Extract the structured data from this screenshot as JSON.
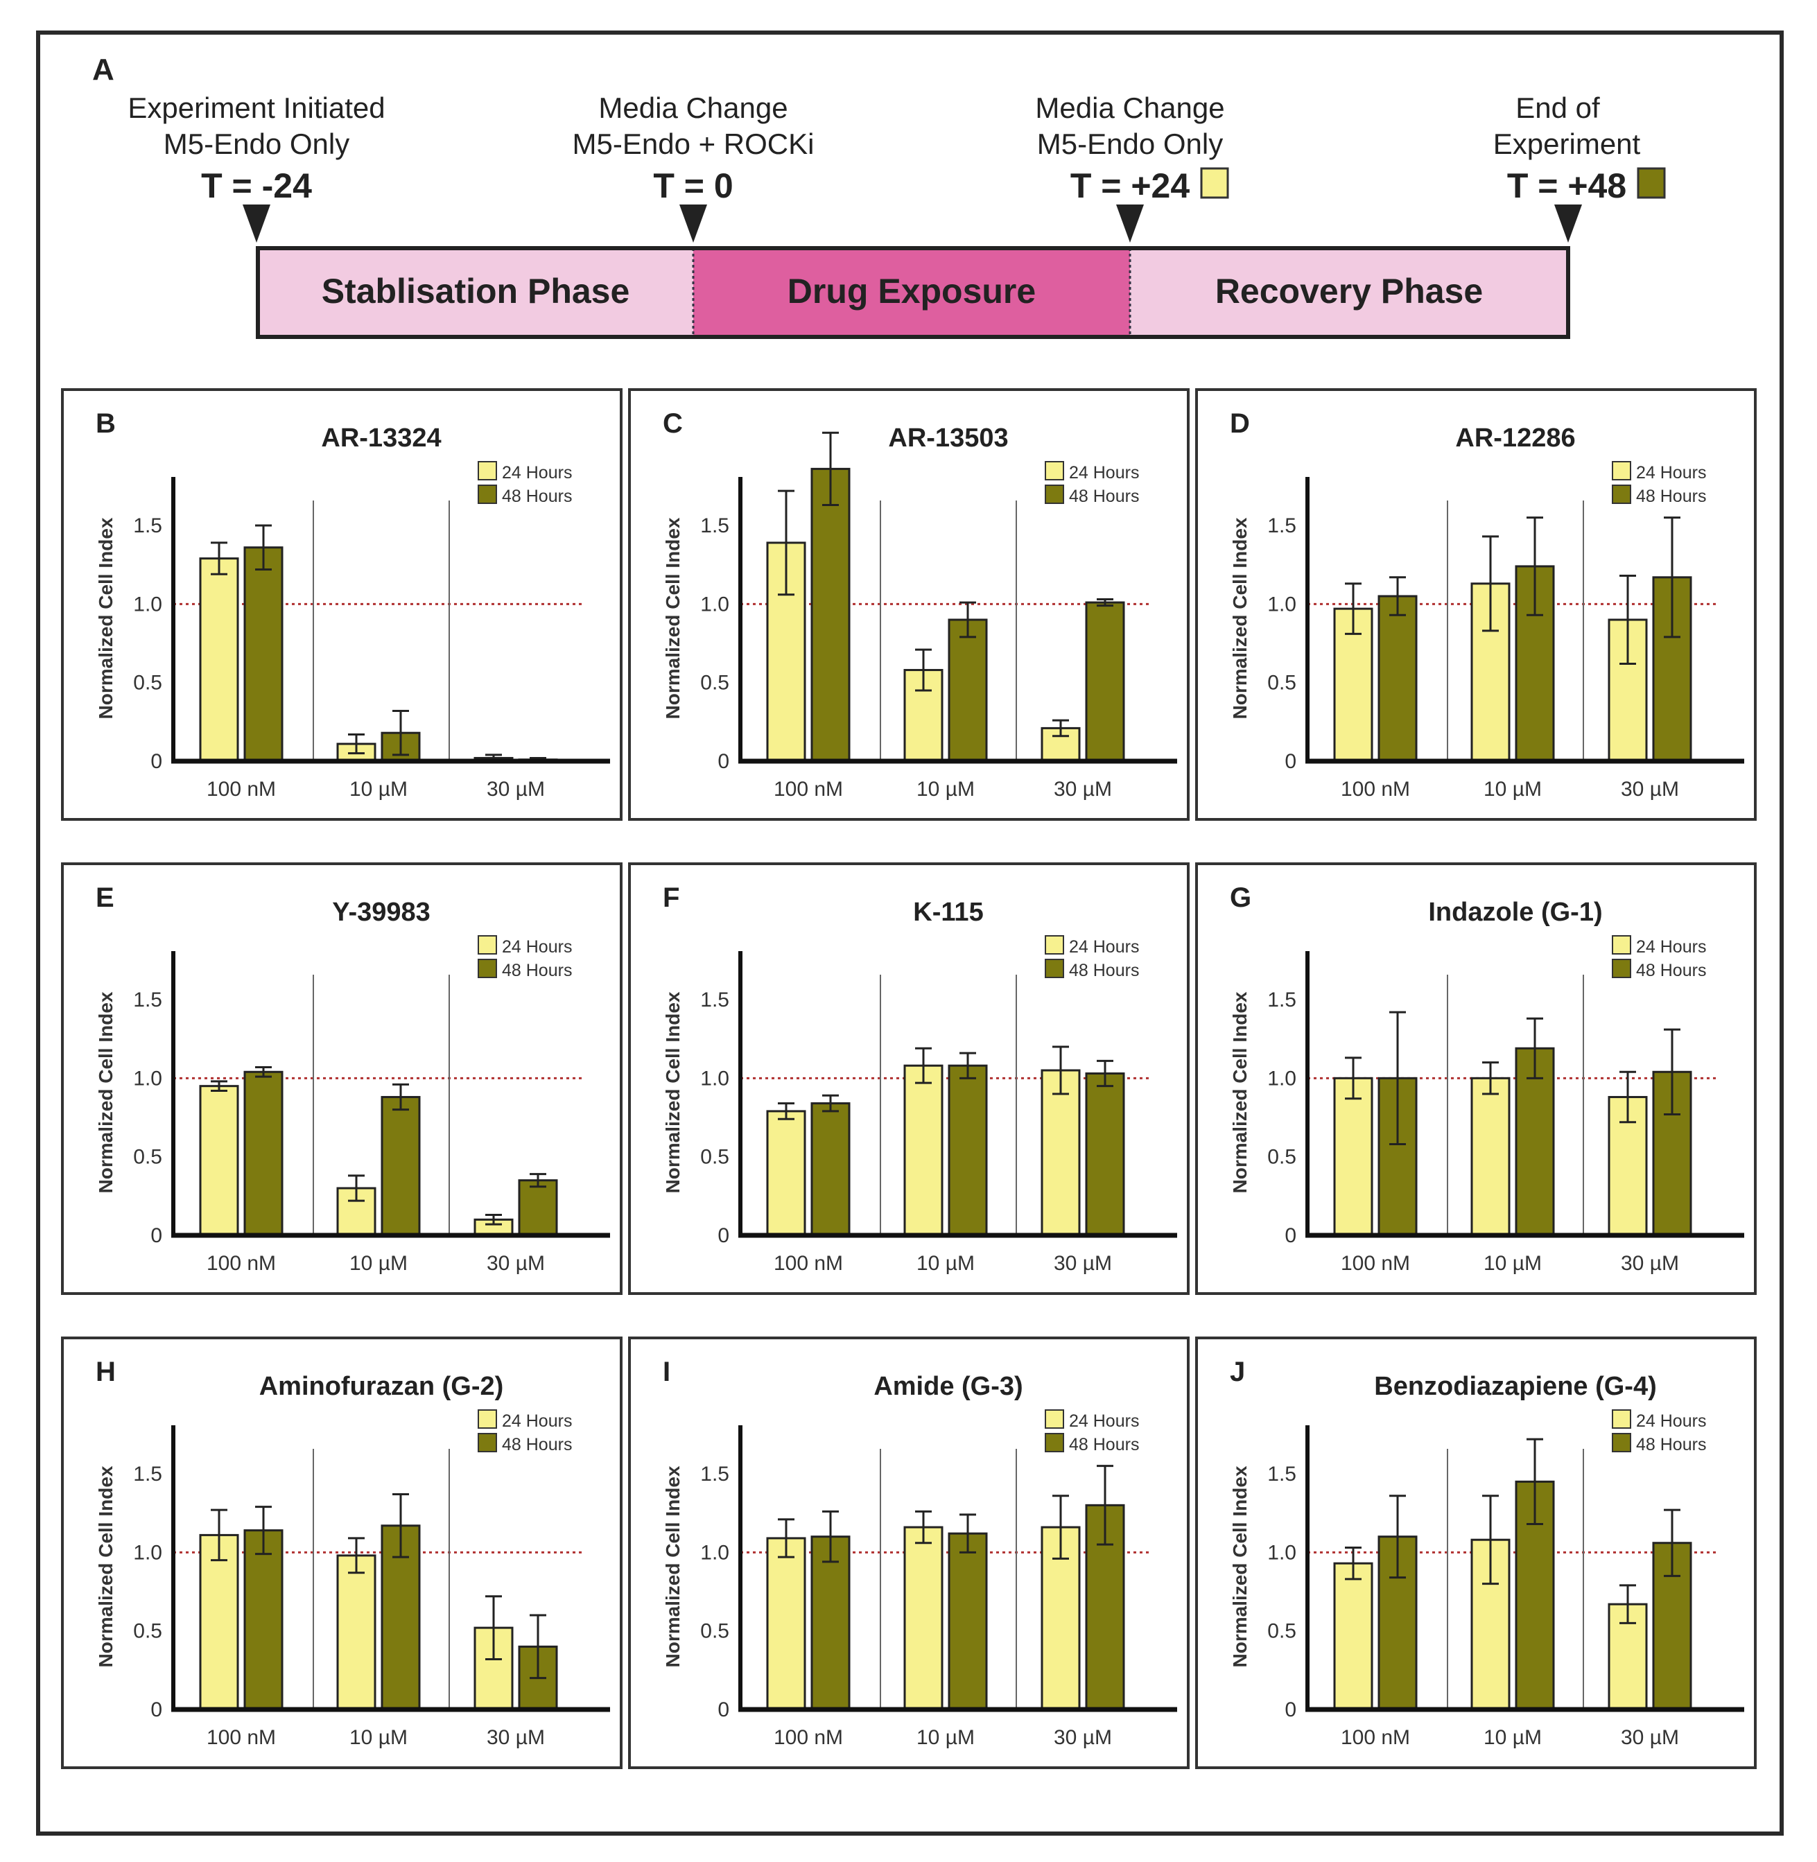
{
  "figure": {
    "panel_letter": "A",
    "events": [
      {
        "line1": "Experiment Initiated",
        "line2": "M5-Endo Only",
        "time": "T = -24",
        "marker": ""
      },
      {
        "line1": "Media Change",
        "line2": "M5-Endo + ROCKi",
        "time": "T = 0",
        "marker": ""
      },
      {
        "line1": "Media Change",
        "line2": "M5-Endo Only",
        "time": "T = +24",
        "marker": "#f7f18f"
      },
      {
        "line1": "End of",
        "line2": "Experiment",
        "time": "T = +48",
        "marker": "#7d7a10"
      }
    ],
    "phases": [
      {
        "label": "Stablisation Phase",
        "color": "#f2cbe1"
      },
      {
        "label": "Drug Exposure",
        "color": "#de5f9f"
      },
      {
        "label": "Recovery Phase",
        "color": "#f2cbe1"
      }
    ]
  },
  "colors": {
    "c24": "#f7f18f",
    "c48": "#7d7a10",
    "ref": "#b03030"
  },
  "chart_data": [
    {
      "type": "bar",
      "panel": "B",
      "title": "AR-13324",
      "ylabel": "Normalized Cell Index",
      "xlabel": "",
      "categories": [
        "100 nM",
        "10 µM",
        "30 µM"
      ],
      "yticks": [
        "0",
        "0.5",
        "1.0",
        "1.5"
      ],
      "ylim": [
        0,
        1.8
      ],
      "reference_line": 1.0,
      "legend": "top-right",
      "series": [
        {
          "name": "24 Hours",
          "values": [
            1.29,
            0.11,
            0.02
          ],
          "errors": [
            0.1,
            0.06,
            0.02
          ]
        },
        {
          "name": "48 Hours",
          "values": [
            1.36,
            0.18,
            0.01
          ],
          "errors": [
            0.14,
            0.14,
            0.01
          ]
        }
      ]
    },
    {
      "type": "bar",
      "panel": "C",
      "title": "AR-13503",
      "ylabel": "Normalized Cell Index",
      "xlabel": "",
      "categories": [
        "100 nM",
        "10 µM",
        "30 µM"
      ],
      "yticks": [
        "0",
        "0.5",
        "1.0",
        "1.5"
      ],
      "ylim": [
        0,
        1.8
      ],
      "reference_line": 1.0,
      "legend": "top-right",
      "series": [
        {
          "name": "24 Hours",
          "values": [
            1.39,
            0.58,
            0.21
          ],
          "errors": [
            0.33,
            0.13,
            0.05
          ]
        },
        {
          "name": "48 Hours",
          "values": [
            1.86,
            0.9,
            1.01
          ],
          "errors": [
            0.23,
            0.11,
            0.02
          ]
        }
      ]
    },
    {
      "type": "bar",
      "panel": "D",
      "title": "AR-12286",
      "ylabel": "Normalized Cell Index",
      "xlabel": "",
      "categories": [
        "100 nM",
        "10 µM",
        "30 µM"
      ],
      "yticks": [
        "0",
        "0.5",
        "1.0",
        "1.5"
      ],
      "ylim": [
        0,
        1.8
      ],
      "reference_line": 1.0,
      "legend": "top-right",
      "series": [
        {
          "name": "24 Hours",
          "values": [
            0.97,
            1.13,
            0.9
          ],
          "errors": [
            0.16,
            0.3,
            0.28
          ]
        },
        {
          "name": "48 Hours",
          "values": [
            1.05,
            1.24,
            1.17
          ],
          "errors": [
            0.12,
            0.31,
            0.38
          ]
        }
      ]
    },
    {
      "type": "bar",
      "panel": "E",
      "title": "Y-39983",
      "ylabel": "Normalized Cell Index",
      "xlabel": "",
      "categories": [
        "100 nM",
        "10 µM",
        "30 µM"
      ],
      "yticks": [
        "0",
        "0.5",
        "1.0",
        "1.5"
      ],
      "ylim": [
        0,
        1.8
      ],
      "reference_line": 1.0,
      "legend": "top-right",
      "series": [
        {
          "name": "24 Hours",
          "values": [
            0.95,
            0.3,
            0.1
          ],
          "errors": [
            0.03,
            0.08,
            0.03
          ]
        },
        {
          "name": "48 Hours",
          "values": [
            1.04,
            0.88,
            0.35
          ],
          "errors": [
            0.03,
            0.08,
            0.04
          ]
        }
      ]
    },
    {
      "type": "bar",
      "panel": "F",
      "title": "K-115",
      "ylabel": "Normalized Cell Index",
      "xlabel": "",
      "categories": [
        "100 nM",
        "10 µM",
        "30 µM"
      ],
      "yticks": [
        "0",
        "0.5",
        "1.0",
        "1.5"
      ],
      "ylim": [
        0,
        1.8
      ],
      "reference_line": 1.0,
      "legend": "top-right",
      "series": [
        {
          "name": "24 Hours",
          "values": [
            0.79,
            1.08,
            1.05
          ],
          "errors": [
            0.05,
            0.11,
            0.15
          ]
        },
        {
          "name": "48 Hours",
          "values": [
            0.84,
            1.08,
            1.03
          ],
          "errors": [
            0.05,
            0.08,
            0.08
          ]
        }
      ]
    },
    {
      "type": "bar",
      "panel": "G",
      "title": "Indazole (G-1)",
      "ylabel": "Normalized Cell Index",
      "xlabel": "",
      "categories": [
        "100 nM",
        "10 µM",
        "30 µM"
      ],
      "yticks": [
        "0",
        "0.5",
        "1.0",
        "1.5"
      ],
      "ylim": [
        0,
        1.8
      ],
      "reference_line": 1.0,
      "legend": "top-right",
      "series": [
        {
          "name": "24 Hours",
          "values": [
            1.0,
            1.0,
            0.88
          ],
          "errors": [
            0.13,
            0.1,
            0.16
          ]
        },
        {
          "name": "48 Hours",
          "values": [
            1.0,
            1.19,
            1.04
          ],
          "errors": [
            0.42,
            0.19,
            0.27
          ]
        }
      ]
    },
    {
      "type": "bar",
      "panel": "H",
      "title": "Aminofurazan (G-2)",
      "ylabel": "Normalized Cell Index",
      "xlabel": "",
      "categories": [
        "100 nM",
        "10 µM",
        "30 µM"
      ],
      "yticks": [
        "0",
        "0.5",
        "1.0",
        "1.5"
      ],
      "ylim": [
        0,
        1.8
      ],
      "reference_line": 1.0,
      "legend": "top-right",
      "series": [
        {
          "name": "24 Hours",
          "values": [
            1.11,
            0.98,
            0.52
          ],
          "errors": [
            0.16,
            0.11,
            0.2
          ]
        },
        {
          "name": "48 Hours",
          "values": [
            1.14,
            1.17,
            0.4
          ],
          "errors": [
            0.15,
            0.2,
            0.2
          ]
        }
      ]
    },
    {
      "type": "bar",
      "panel": "I",
      "title": "Amide (G-3)",
      "ylabel": "Normalized Cell Index",
      "xlabel": "",
      "categories": [
        "100 nM",
        "10 µM",
        "30 µM"
      ],
      "yticks": [
        "0",
        "0.5",
        "1.0",
        "1.5"
      ],
      "ylim": [
        0,
        1.8
      ],
      "reference_line": 1.0,
      "legend": "top-right",
      "series": [
        {
          "name": "24 Hours",
          "values": [
            1.09,
            1.16,
            1.16
          ],
          "errors": [
            0.12,
            0.1,
            0.2
          ]
        },
        {
          "name": "48 Hours",
          "values": [
            1.1,
            1.12,
            1.3
          ],
          "errors": [
            0.16,
            0.12,
            0.25
          ]
        }
      ]
    },
    {
      "type": "bar",
      "panel": "J",
      "title": "Benzodiazapiene (G-4)",
      "ylabel": "Normalized Cell Index",
      "xlabel": "",
      "categories": [
        "100 nM",
        "10 µM",
        "30 µM"
      ],
      "yticks": [
        "0",
        "0.5",
        "1.0",
        "1.5"
      ],
      "ylim": [
        0,
        1.8
      ],
      "reference_line": 1.0,
      "legend": "top-right",
      "series": [
        {
          "name": "24 Hours",
          "values": [
            0.93,
            1.08,
            0.67
          ],
          "errors": [
            0.1,
            0.28,
            0.12
          ]
        },
        {
          "name": "48 Hours",
          "values": [
            1.1,
            1.45,
            1.06
          ],
          "errors": [
            0.26,
            0.27,
            0.21
          ]
        }
      ]
    }
  ]
}
